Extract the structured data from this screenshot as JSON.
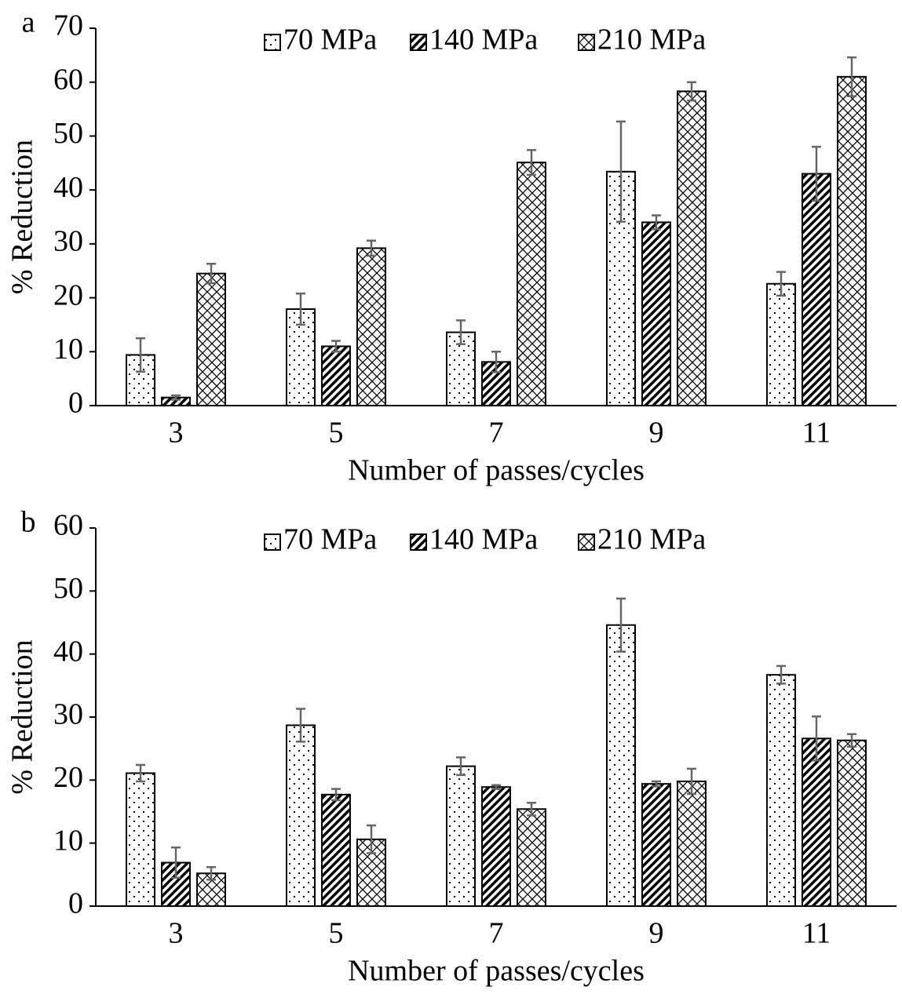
{
  "chart_data": [
    {
      "type": "bar",
      "panel_label": "a",
      "x_label": "Number of passes/cycles",
      "y_label": "% Reduction",
      "categories": [
        "3",
        "5",
        "7",
        "9",
        "11"
      ],
      "series": [
        {
          "name": "70 MPa",
          "pattern": "dots",
          "color": "#000000",
          "values": [
            9.4,
            17.9,
            13.6,
            43.4,
            22.6
          ],
          "errors": [
            3.1,
            2.9,
            2.2,
            9.3,
            2.2
          ]
        },
        {
          "name": "140 MPa",
          "pattern": "stripes",
          "color": "#000000",
          "values": [
            1.5,
            11.0,
            8.1,
            34.0,
            43.0
          ],
          "errors": [
            0.4,
            1.0,
            1.9,
            1.3,
            5.0
          ]
        },
        {
          "name": "210 MPa",
          "pattern": "crosshatch",
          "color": "#000000",
          "values": [
            24.5,
            29.2,
            45.1,
            58.3,
            61.0
          ],
          "errors": [
            1.8,
            1.4,
            2.3,
            1.7,
            3.6
          ]
        }
      ],
      "ylim": [
        0,
        70
      ],
      "yticks": [
        0,
        10,
        20,
        30,
        40,
        50,
        60,
        70
      ],
      "grid": false,
      "legend": "top"
    },
    {
      "type": "bar",
      "panel_label": "b",
      "x_label": "Number of passes/cycles",
      "y_label": "% Reduction",
      "categories": [
        "3",
        "5",
        "7",
        "9",
        "11"
      ],
      "series": [
        {
          "name": "70 MPa",
          "pattern": "dots",
          "color": "#000000",
          "values": [
            21.1,
            28.7,
            22.2,
            44.6,
            36.7
          ],
          "errors": [
            1.3,
            2.6,
            1.4,
            4.2,
            1.4
          ]
        },
        {
          "name": "140 MPa",
          "pattern": "stripes",
          "color": "#000000",
          "values": [
            6.9,
            17.7,
            18.9,
            19.4,
            26.6
          ],
          "errors": [
            2.4,
            0.9,
            0.3,
            0.4,
            3.5
          ]
        },
        {
          "name": "210 MPa",
          "pattern": "crosshatch",
          "color": "#000000",
          "values": [
            5.2,
            10.6,
            15.4,
            19.8,
            26.3
          ],
          "errors": [
            1.0,
            2.2,
            1.0,
            2.0,
            1.0
          ]
        }
      ],
      "ylim": [
        0,
        60
      ],
      "yticks": [
        0,
        10,
        20,
        30,
        40,
        50,
        60
      ],
      "grid": false,
      "legend": "top"
    }
  ]
}
